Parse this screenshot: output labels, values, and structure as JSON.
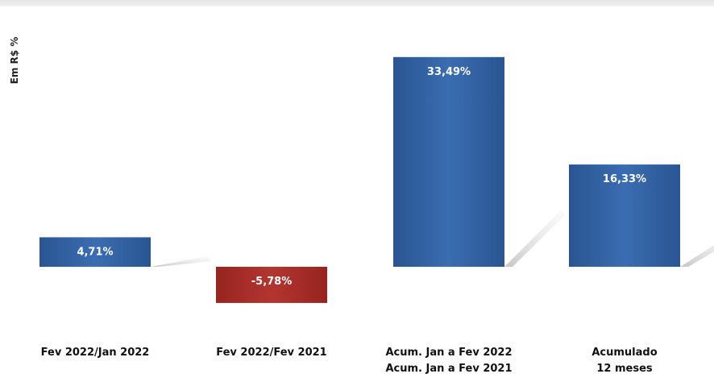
{
  "chart_data": {
    "type": "bar",
    "ylabel": "Em R$ %",
    "categories": [
      [
        "Fev 2022/Jan 2022"
      ],
      [
        "Fev 2022/Fev 2021"
      ],
      [
        "Acum. Jan a Fev 2022",
        "Acum. Jan a Fev 2021"
      ],
      [
        "Acumulado",
        "12 meses"
      ]
    ],
    "values": [
      4.71,
      -5.78,
      33.49,
      16.33
    ],
    "data_labels": [
      "4,71%",
      "-5,78%",
      "33,49%",
      "16,33%"
    ],
    "colors": {
      "positive": "#2f5d9e",
      "negative": "#a52a26"
    },
    "grid": false,
    "legend": "none"
  }
}
